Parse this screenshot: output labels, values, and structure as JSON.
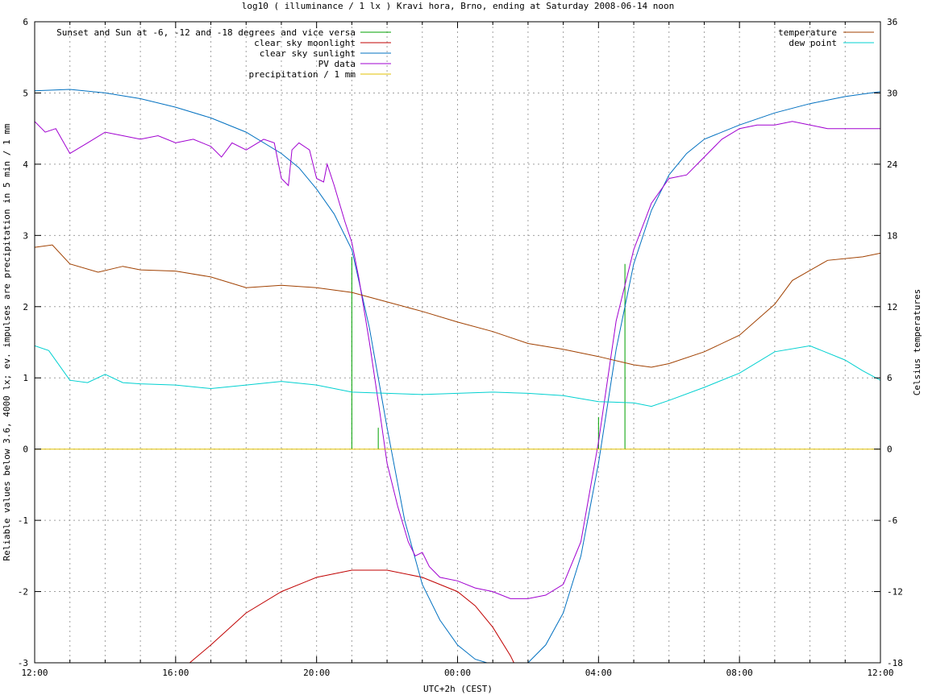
{
  "chart_data": {
    "type": "line",
    "title": "log10 ( illuminance / 1 lx ) Kravi hora, Brno, ending at Saturday 2008-06-14 noon",
    "xlabel": "UTC+2h (CEST)",
    "ylabel": "Reliable values below 3.6, 4000 lx; ev. impulses are precipitation in 5 min / 1 mm",
    "y2label": "Celsius temperatures",
    "xlim": [
      0,
      24
    ],
    "ylim": [
      -3,
      6
    ],
    "y2lim": [
      -18,
      36
    ],
    "grid": true,
    "xticks": [
      {
        "x": 0,
        "label": "12:00"
      },
      {
        "x": 4,
        "label": "16:00"
      },
      {
        "x": 8,
        "label": "20:00"
      },
      {
        "x": 12,
        "label": "00:00"
      },
      {
        "x": 16,
        "label": "04:00"
      },
      {
        "x": 20,
        "label": "08:00"
      },
      {
        "x": 24,
        "label": "12:00"
      }
    ],
    "yticks": [
      -3,
      -2,
      -1,
      0,
      1,
      2,
      3,
      4,
      5,
      6
    ],
    "y2ticks": [
      -18,
      -12,
      -6,
      0,
      6,
      12,
      18,
      24,
      30,
      36
    ],
    "legend_left_position": "top-left",
    "legend_right_position": "top-right",
    "series": [
      {
        "name": "Sunset and Sun at -6, -12 and -18 degrees and vice versa",
        "color": "#00a000",
        "type": "impulses",
        "axis": "y1",
        "points": [
          [
            9.0,
            2.7
          ],
          [
            9.75,
            0.3
          ],
          [
            10.8,
            0.0
          ],
          [
            15.05,
            0.0
          ],
          [
            16.0,
            0.45
          ],
          [
            16.75,
            2.6
          ]
        ]
      },
      {
        "name": "clear sky moonlight",
        "color": "#c00000",
        "axis": "y1",
        "points": [
          [
            4.4,
            -3.0
          ],
          [
            5.0,
            -2.75
          ],
          [
            6.0,
            -2.3
          ],
          [
            7.0,
            -2.0
          ],
          [
            8.0,
            -1.8
          ],
          [
            9.0,
            -1.7
          ],
          [
            10.0,
            -1.7
          ],
          [
            11.0,
            -1.8
          ],
          [
            12.0,
            -2.0
          ],
          [
            12.5,
            -2.2
          ],
          [
            13.0,
            -2.5
          ],
          [
            13.5,
            -2.9
          ],
          [
            13.6,
            -3.0
          ]
        ]
      },
      {
        "name": "clear sky sunlight",
        "color": "#0070c0",
        "axis": "y1",
        "points": [
          [
            0,
            5.03
          ],
          [
            1,
            5.05
          ],
          [
            2,
            5.0
          ],
          [
            3,
            4.92
          ],
          [
            4,
            4.8
          ],
          [
            5,
            4.65
          ],
          [
            6,
            4.45
          ],
          [
            7,
            4.15
          ],
          [
            7.5,
            3.95
          ],
          [
            8,
            3.65
          ],
          [
            8.5,
            3.3
          ],
          [
            9.0,
            2.8
          ],
          [
            9.5,
            1.7
          ],
          [
            10.0,
            0.3
          ],
          [
            10.5,
            -1.0
          ],
          [
            11.0,
            -1.9
          ],
          [
            11.5,
            -2.4
          ],
          [
            12.0,
            -2.75
          ],
          [
            12.5,
            -2.95
          ],
          [
            13.5,
            -3.1
          ],
          [
            14.0,
            -3.0
          ],
          [
            14.5,
            -2.75
          ],
          [
            15.0,
            -2.3
          ],
          [
            15.5,
            -1.5
          ],
          [
            16.0,
            -0.2
          ],
          [
            16.5,
            1.4
          ],
          [
            17.0,
            2.6
          ],
          [
            17.5,
            3.35
          ],
          [
            18.0,
            3.85
          ],
          [
            18.5,
            4.15
          ],
          [
            19.0,
            4.35
          ],
          [
            20.0,
            4.55
          ],
          [
            21.0,
            4.72
          ],
          [
            22.0,
            4.85
          ],
          [
            23.0,
            4.95
          ],
          [
            24.0,
            5.02
          ]
        ]
      },
      {
        "name": "PV data",
        "color": "#a000d0",
        "axis": "y1",
        "points": [
          [
            0,
            4.6
          ],
          [
            0.3,
            4.45
          ],
          [
            0.6,
            4.5
          ],
          [
            1.0,
            4.15
          ],
          [
            1.5,
            4.3
          ],
          [
            2.0,
            4.45
          ],
          [
            2.5,
            4.4
          ],
          [
            3.0,
            4.35
          ],
          [
            3.5,
            4.4
          ],
          [
            4.0,
            4.3
          ],
          [
            4.5,
            4.35
          ],
          [
            5.0,
            4.25
          ],
          [
            5.3,
            4.1
          ],
          [
            5.6,
            4.3
          ],
          [
            6.0,
            4.2
          ],
          [
            6.5,
            4.35
          ],
          [
            6.8,
            4.3
          ],
          [
            7.0,
            3.8
          ],
          [
            7.2,
            3.7
          ],
          [
            7.3,
            4.2
          ],
          [
            7.5,
            4.3
          ],
          [
            7.8,
            4.2
          ],
          [
            8.0,
            3.8
          ],
          [
            8.2,
            3.75
          ],
          [
            8.3,
            4.0
          ],
          [
            8.5,
            3.7
          ],
          [
            8.8,
            3.2
          ],
          [
            9.0,
            2.9
          ],
          [
            9.2,
            2.4
          ],
          [
            9.5,
            1.5
          ],
          [
            9.8,
            0.5
          ],
          [
            10.0,
            -0.2
          ],
          [
            10.3,
            -0.8
          ],
          [
            10.6,
            -1.3
          ],
          [
            10.8,
            -1.5
          ],
          [
            11.0,
            -1.45
          ],
          [
            11.2,
            -1.65
          ],
          [
            11.5,
            -1.8
          ],
          [
            12.0,
            -1.85
          ],
          [
            12.5,
            -1.95
          ],
          [
            13.0,
            -2.0
          ],
          [
            13.5,
            -2.1
          ],
          [
            14.0,
            -2.1
          ],
          [
            14.5,
            -2.05
          ],
          [
            15.0,
            -1.9
          ],
          [
            15.5,
            -1.3
          ],
          [
            16.0,
            0.1
          ],
          [
            16.5,
            1.8
          ],
          [
            17.0,
            2.8
          ],
          [
            17.5,
            3.45
          ],
          [
            18.0,
            3.8
          ],
          [
            18.5,
            3.85
          ],
          [
            19.0,
            4.1
          ],
          [
            19.5,
            4.35
          ],
          [
            20.0,
            4.5
          ],
          [
            20.5,
            4.55
          ],
          [
            21.0,
            4.55
          ],
          [
            21.5,
            4.6
          ],
          [
            22.0,
            4.55
          ],
          [
            22.5,
            4.5
          ],
          [
            23.0,
            4.5
          ],
          [
            23.5,
            4.5
          ],
          [
            24.0,
            4.5
          ]
        ]
      },
      {
        "name": "precipitation / 1 mm",
        "color": "#e0c000",
        "axis": "y1",
        "points": [
          [
            0,
            0
          ],
          [
            24,
            0
          ]
        ]
      },
      {
        "name": "temperature",
        "color": "#a04000",
        "axis": "y2",
        "points": [
          [
            0,
            17.0
          ],
          [
            0.5,
            17.2
          ],
          [
            1.0,
            15.6
          ],
          [
            1.8,
            14.9
          ],
          [
            2.5,
            15.4
          ],
          [
            3.0,
            15.1
          ],
          [
            4.0,
            15.0
          ],
          [
            5.0,
            14.5
          ],
          [
            6.0,
            13.6
          ],
          [
            7.0,
            13.8
          ],
          [
            8.0,
            13.6
          ],
          [
            9.0,
            13.2
          ],
          [
            10.0,
            12.4
          ],
          [
            11.0,
            11.6
          ],
          [
            12.0,
            10.7
          ],
          [
            13.0,
            9.9
          ],
          [
            14.0,
            8.9
          ],
          [
            15.0,
            8.4
          ],
          [
            16.0,
            7.8
          ],
          [
            17.0,
            7.1
          ],
          [
            17.5,
            6.9
          ],
          [
            18.0,
            7.2
          ],
          [
            19.0,
            8.2
          ],
          [
            20.0,
            9.6
          ],
          [
            21.0,
            12.2
          ],
          [
            21.5,
            14.2
          ],
          [
            22.5,
            15.9
          ],
          [
            23.5,
            16.2
          ],
          [
            24.0,
            16.5
          ]
        ]
      },
      {
        "name": "dew point",
        "color": "#00d0d0",
        "axis": "y2",
        "points": [
          [
            0,
            8.7
          ],
          [
            0.4,
            8.3
          ],
          [
            1.0,
            5.8
          ],
          [
            1.5,
            5.6
          ],
          [
            2.0,
            6.3
          ],
          [
            2.5,
            5.6
          ],
          [
            3.0,
            5.5
          ],
          [
            4.0,
            5.4
          ],
          [
            5.0,
            5.1
          ],
          [
            6.0,
            5.4
          ],
          [
            7.0,
            5.7
          ],
          [
            8.0,
            5.4
          ],
          [
            9.0,
            4.8
          ],
          [
            10.0,
            4.7
          ],
          [
            11.0,
            4.6
          ],
          [
            12.0,
            4.7
          ],
          [
            13.0,
            4.8
          ],
          [
            14.0,
            4.7
          ],
          [
            15.0,
            4.5
          ],
          [
            16.0,
            4.0
          ],
          [
            17.0,
            3.9
          ],
          [
            17.5,
            3.6
          ],
          [
            18.0,
            4.1
          ],
          [
            19.0,
            5.2
          ],
          [
            20.0,
            6.4
          ],
          [
            21.0,
            8.2
          ],
          [
            22.0,
            8.7
          ],
          [
            23.0,
            7.5
          ],
          [
            23.5,
            6.6
          ],
          [
            24.0,
            5.8
          ]
        ]
      }
    ]
  }
}
